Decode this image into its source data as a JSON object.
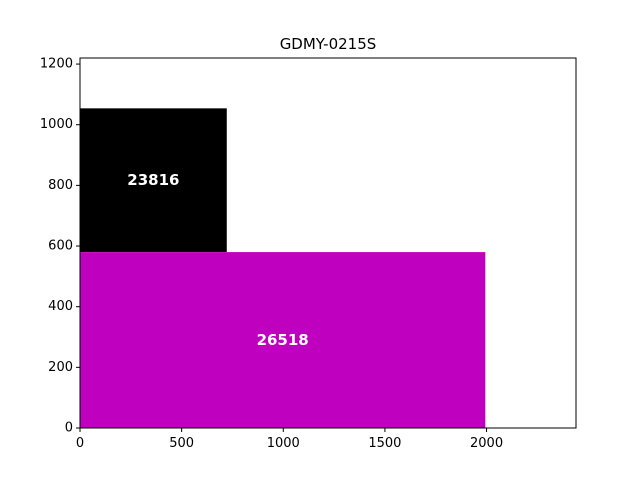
{
  "chart_data": {
    "type": "bar",
    "title": "GDMY-0215S",
    "xlabel": "",
    "ylabel": "",
    "xlim": [
      0,
      2440
    ],
    "ylim": [
      0,
      1220
    ],
    "xticks": [
      0,
      500,
      1000,
      1500,
      2000
    ],
    "yticks": [
      0,
      200,
      400,
      600,
      800,
      1000,
      1200
    ],
    "grid": false,
    "rects": [
      {
        "label": "23816",
        "x": 0,
        "y": 580,
        "width": 722,
        "height": 474,
        "color": "#000000"
      },
      {
        "label": "26518",
        "x": 0,
        "y": 0,
        "width": 1994,
        "height": 580,
        "color": "#bf00bf"
      }
    ]
  }
}
